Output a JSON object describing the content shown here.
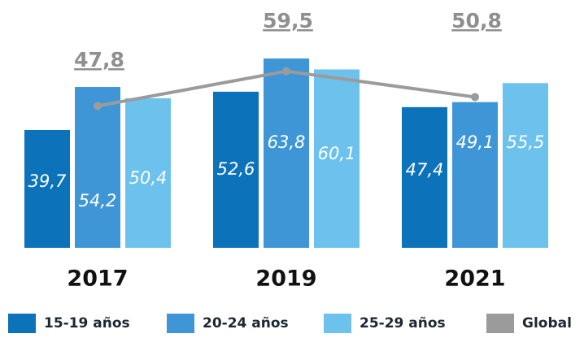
{
  "chart_data": {
    "type": "bar",
    "categories": [
      "2017",
      "2019",
      "2021"
    ],
    "series": [
      {
        "name": "15-19 años",
        "color": "#0c73ba",
        "values": [
          39.7,
          52.6,
          47.4
        ],
        "value_labels": [
          "39,7",
          "52,6",
          "47,4"
        ]
      },
      {
        "name": "20-24 años",
        "color": "#3f96d6",
        "values": [
          54.2,
          63.8,
          49.1
        ],
        "value_labels": [
          "54,2",
          "63,8",
          "49,1"
        ]
      },
      {
        "name": "25-29 años",
        "color": "#6cc1ed",
        "values": [
          50.4,
          60.1,
          55.5
        ],
        "value_labels": [
          "50,4",
          "60,1",
          "55,5"
        ]
      },
      {
        "name": "Global",
        "type": "line",
        "color": "#9b9b9b",
        "values": [
          47.8,
          59.5,
          50.8
        ],
        "value_labels": [
          "47,8",
          "59,5",
          "50,8"
        ]
      }
    ],
    "ylim": [
      0,
      83.5
    ]
  }
}
